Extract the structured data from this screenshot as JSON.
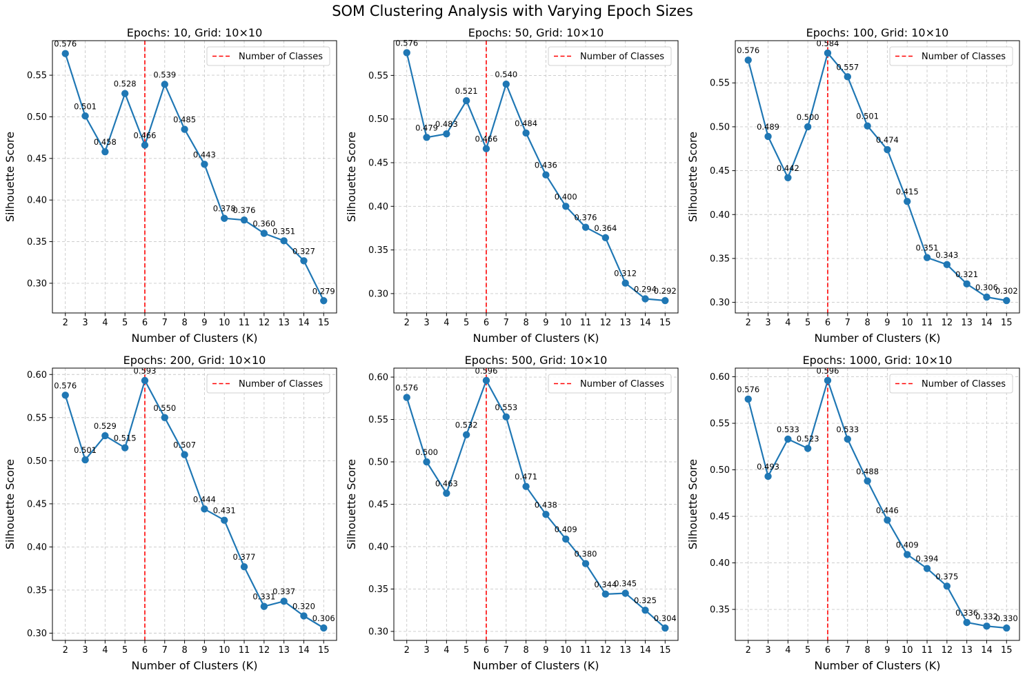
{
  "figure": {
    "suptitle": "SOM Clustering Analysis with Varying Epoch Sizes"
  },
  "colors": {
    "line": "#1f77b4",
    "vline": "#ff0000",
    "grid": "#c8c8c8",
    "axis": "#000000"
  },
  "chart_data": [
    {
      "type": "line",
      "title": "Epochs: 10, Grid: 10×10",
      "xlabel": "Number of Clusters (K)",
      "ylabel": "Silhouette Score",
      "x": [
        2,
        3,
        4,
        5,
        6,
        7,
        8,
        9,
        10,
        11,
        12,
        13,
        14,
        15
      ],
      "series": [
        {
          "values": [
            0.576,
            0.501,
            0.458,
            0.528,
            0.466,
            0.539,
            0.485,
            0.443,
            0.378,
            0.376,
            0.36,
            0.351,
            0.327,
            0.279
          ]
        }
      ],
      "point_labels": [
        "0.576",
        "0.501",
        "0.458",
        "0.528",
        "0.466",
        "0.539",
        "0.485",
        "0.443",
        "0.378",
        "0.376",
        "0.360",
        "0.351",
        "0.327",
        "0.279"
      ],
      "xlim": [
        1.35,
        15.65
      ],
      "ylim": [
        0.2643,
        0.5915
      ],
      "yticks": [
        0.3,
        0.35,
        0.4,
        0.45,
        0.5,
        0.55
      ],
      "ytick_labels": [
        "0.30",
        "0.35",
        "0.40",
        "0.45",
        "0.50",
        "0.55"
      ],
      "vline": {
        "x": 6,
        "label": "Number of Classes"
      },
      "legend": "top-right",
      "grid": true
    },
    {
      "type": "line",
      "title": "Epochs: 50, Grid: 10×10",
      "xlabel": "Number of Clusters (K)",
      "ylabel": "Silhouette Score",
      "x": [
        2,
        3,
        4,
        5,
        6,
        7,
        8,
        9,
        10,
        11,
        12,
        13,
        14,
        15
      ],
      "series": [
        {
          "values": [
            0.576,
            0.479,
            0.483,
            0.521,
            0.466,
            0.54,
            0.484,
            0.436,
            0.4,
            0.376,
            0.364,
            0.312,
            0.294,
            0.292
          ]
        }
      ],
      "point_labels": [
        "0.576",
        "0.479",
        "0.483",
        "0.521",
        "0.466",
        "0.540",
        "0.484",
        "0.436",
        "0.400",
        "0.376",
        "0.364",
        "0.312",
        "0.294",
        "0.292"
      ],
      "xlim": [
        1.35,
        15.65
      ],
      "ylim": [
        0.2778,
        0.5898
      ],
      "yticks": [
        0.3,
        0.35,
        0.4,
        0.45,
        0.5,
        0.55
      ],
      "ytick_labels": [
        "0.30",
        "0.35",
        "0.40",
        "0.45",
        "0.50",
        "0.55"
      ],
      "vline": {
        "x": 6,
        "label": "Number of Classes"
      },
      "legend": "top-right",
      "grid": true
    },
    {
      "type": "line",
      "title": "Epochs: 100, Grid: 10×10",
      "xlabel": "Number of Clusters (K)",
      "ylabel": "Silhouette Score",
      "x": [
        2,
        3,
        4,
        5,
        6,
        7,
        8,
        9,
        10,
        11,
        12,
        13,
        14,
        15
      ],
      "series": [
        {
          "values": [
            0.576,
            0.489,
            0.442,
            0.5,
            0.584,
            0.557,
            0.501,
            0.474,
            0.415,
            0.351,
            0.343,
            0.321,
            0.306,
            0.302
          ]
        }
      ],
      "point_labels": [
        "0.576",
        "0.489",
        "0.442",
        "0.500",
        "0.584",
        "0.557",
        "0.501",
        "0.474",
        "0.415",
        "0.351",
        "0.343",
        "0.321",
        "0.306",
        "0.302"
      ],
      "xlim": [
        1.35,
        15.65
      ],
      "ylim": [
        0.2879,
        0.5981
      ],
      "yticks": [
        0.3,
        0.35,
        0.4,
        0.45,
        0.5,
        0.55
      ],
      "ytick_labels": [
        "0.30",
        "0.35",
        "0.40",
        "0.45",
        "0.50",
        "0.55"
      ],
      "vline": {
        "x": 6,
        "label": "Number of Classes"
      },
      "legend": "top-right",
      "grid": true
    },
    {
      "type": "line",
      "title": "Epochs: 200, Grid: 10×10",
      "xlabel": "Number of Clusters (K)",
      "ylabel": "Silhouette Score",
      "x": [
        2,
        3,
        4,
        5,
        6,
        7,
        8,
        9,
        10,
        11,
        12,
        13,
        14,
        15
      ],
      "series": [
        {
          "values": [
            0.576,
            0.501,
            0.529,
            0.515,
            0.593,
            0.55,
            0.507,
            0.444,
            0.431,
            0.377,
            0.331,
            0.337,
            0.32,
            0.306
          ]
        }
      ],
      "point_labels": [
        "0.576",
        "0.501",
        "0.529",
        "0.515",
        "0.593",
        "0.550",
        "0.507",
        "0.444",
        "0.431",
        "0.377",
        "0.331",
        "0.337",
        "0.320",
        "0.306"
      ],
      "xlim": [
        1.35,
        15.65
      ],
      "ylim": [
        0.2916,
        0.6074
      ],
      "yticks": [
        0.3,
        0.35,
        0.4,
        0.45,
        0.5,
        0.55,
        0.6
      ],
      "ytick_labels": [
        "0.30",
        "0.35",
        "0.40",
        "0.45",
        "0.50",
        "0.55",
        "0.60"
      ],
      "vline": {
        "x": 6,
        "label": "Number of Classes"
      },
      "legend": "top-right",
      "grid": true
    },
    {
      "type": "line",
      "title": "Epochs: 500, Grid: 10×10",
      "xlabel": "Number of Clusters (K)",
      "ylabel": "Silhouette Score",
      "x": [
        2,
        3,
        4,
        5,
        6,
        7,
        8,
        9,
        10,
        11,
        12,
        13,
        14,
        15
      ],
      "series": [
        {
          "values": [
            0.576,
            0.5,
            0.463,
            0.532,
            0.596,
            0.553,
            0.471,
            0.438,
            0.409,
            0.38,
            0.344,
            0.345,
            0.325,
            0.304
          ]
        }
      ],
      "point_labels": [
        "0.576",
        "0.500",
        "0.463",
        "0.532",
        "0.596",
        "0.553",
        "0.471",
        "0.438",
        "0.409",
        "0.380",
        "0.344",
        "0.345",
        "0.325",
        "0.304"
      ],
      "xlim": [
        1.35,
        15.65
      ],
      "ylim": [
        0.2894,
        0.6106
      ],
      "yticks": [
        0.3,
        0.35,
        0.4,
        0.45,
        0.5,
        0.55,
        0.6
      ],
      "ytick_labels": [
        "0.30",
        "0.35",
        "0.40",
        "0.45",
        "0.50",
        "0.55",
        "0.60"
      ],
      "vline": {
        "x": 6,
        "label": "Number of Classes"
      },
      "legend": "top-right",
      "grid": true
    },
    {
      "type": "line",
      "title": "Epochs: 1000, Grid: 10×10",
      "xlabel": "Number of Clusters (K)",
      "ylabel": "Silhouette Score",
      "x": [
        2,
        3,
        4,
        5,
        6,
        7,
        8,
        9,
        10,
        11,
        12,
        13,
        14,
        15
      ],
      "series": [
        {
          "values": [
            0.576,
            0.493,
            0.533,
            0.523,
            0.596,
            0.533,
            0.488,
            0.446,
            0.409,
            0.394,
            0.375,
            0.336,
            0.332,
            0.33
          ]
        }
      ],
      "point_labels": [
        "0.576",
        "0.493",
        "0.533",
        "0.523",
        "0.596",
        "0.533",
        "0.488",
        "0.446",
        "0.409",
        "0.394",
        "0.375",
        "0.336",
        "0.332",
        "0.330"
      ],
      "xlim": [
        1.35,
        15.65
      ],
      "ylim": [
        0.3167,
        0.6093
      ],
      "yticks": [
        0.35,
        0.4,
        0.45,
        0.5,
        0.55,
        0.6
      ],
      "ytick_labels": [
        "0.35",
        "0.40",
        "0.45",
        "0.50",
        "0.55",
        "0.60"
      ],
      "vline": {
        "x": 6,
        "label": "Number of Classes"
      },
      "legend": "top-right",
      "grid": true
    }
  ]
}
